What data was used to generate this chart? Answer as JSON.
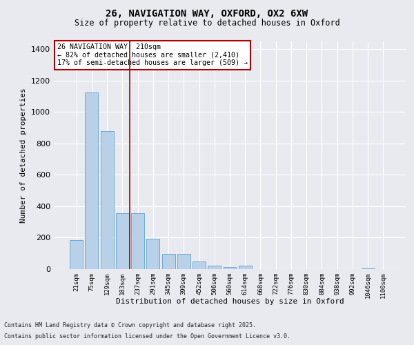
{
  "title_line1": "26, NAVIGATION WAY, OXFORD, OX2 6XW",
  "title_line2": "Size of property relative to detached houses in Oxford",
  "xlabel": "Distribution of detached houses by size in Oxford",
  "ylabel": "Number of detached properties",
  "categories": [
    "21sqm",
    "75sqm",
    "129sqm",
    "183sqm",
    "237sqm",
    "291sqm",
    "345sqm",
    "399sqm",
    "452sqm",
    "506sqm",
    "560sqm",
    "614sqm",
    "668sqm",
    "722sqm",
    "776sqm",
    "830sqm",
    "884sqm",
    "938sqm",
    "992sqm",
    "1046sqm",
    "1100sqm"
  ],
  "values": [
    185,
    1125,
    880,
    355,
    355,
    195,
    95,
    95,
    48,
    20,
    12,
    20,
    0,
    0,
    0,
    0,
    0,
    0,
    0,
    5,
    0
  ],
  "bar_color": "#b8d0e8",
  "bar_edge_color": "#6aaad4",
  "bg_color": "#e8eaf0",
  "grid_color": "#ffffff",
  "vline_color": "#aa0000",
  "annotation_text": "26 NAVIGATION WAY: 210sqm\n← 82% of detached houses are smaller (2,410)\n17% of semi-detached houses are larger (509) →",
  "annotation_box_edgecolor": "#aa0000",
  "footer_line1": "Contains HM Land Registry data © Crown copyright and database right 2025.",
  "footer_line2": "Contains public sector information licensed under the Open Government Licence v3.0.",
  "ylim": [
    0,
    1450
  ],
  "yticks": [
    0,
    200,
    400,
    600,
    800,
    1000,
    1200,
    1400
  ]
}
